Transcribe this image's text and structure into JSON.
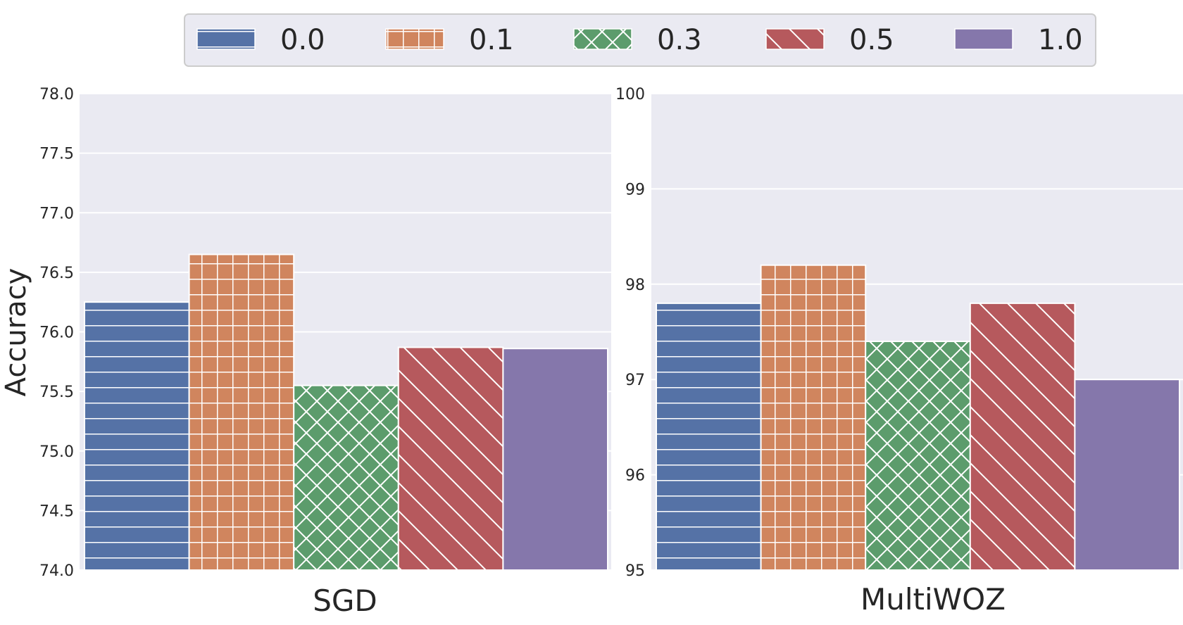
{
  "colors": {
    "background": "#eaeaf2",
    "grid": "#ffffff",
    "text": "#262626",
    "series": [
      "#5572a6",
      "#d0855e",
      "#5c9c6c",
      "#b6595d",
      "#8577ab"
    ]
  },
  "legend": {
    "location": "top-center",
    "entries": [
      {
        "label": "0.0",
        "hatch": "horizontal"
      },
      {
        "label": "0.1",
        "hatch": "grid"
      },
      {
        "label": "0.3",
        "hatch": "cross-diagonal"
      },
      {
        "label": "0.5",
        "hatch": "back-diagonal"
      },
      {
        "label": "1.0",
        "hatch": "none"
      }
    ]
  },
  "chart_data": [
    {
      "type": "bar",
      "title": "",
      "xlabel": "SGD",
      "ylabel": "Accuracy",
      "categories": [
        "0.0",
        "0.1",
        "0.3",
        "0.5",
        "1.0"
      ],
      "values": [
        76.25,
        76.65,
        75.55,
        75.87,
        75.86
      ],
      "ylim": [
        74.0,
        78.0
      ],
      "yticks": [
        "74.0",
        "74.5",
        "75.0",
        "75.5",
        "76.0",
        "76.5",
        "77.0",
        "77.5",
        "78.0"
      ],
      "grid": true
    },
    {
      "type": "bar",
      "title": "",
      "xlabel": "MultiWOZ",
      "ylabel": "",
      "categories": [
        "0.0",
        "0.1",
        "0.3",
        "0.5",
        "1.0"
      ],
      "values": [
        97.8,
        98.2,
        97.4,
        97.8,
        97.0
      ],
      "ylim": [
        95,
        100
      ],
      "yticks": [
        "95",
        "96",
        "97",
        "98",
        "99",
        "100"
      ],
      "grid": true
    }
  ]
}
